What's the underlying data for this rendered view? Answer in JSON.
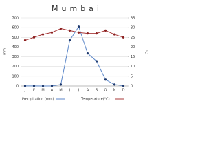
{
  "chart_data": {
    "type": "line",
    "title": "Mumbai",
    "categories": [
      "J",
      "F",
      "M",
      "A",
      "M",
      "J",
      "J",
      "A",
      "S",
      "O",
      "N",
      "D"
    ],
    "ylabel": "mm",
    "y2label": "°C",
    "ylim": [
      0,
      700
    ],
    "yticks": [
      0,
      100,
      200,
      300,
      400,
      500,
      600,
      700
    ],
    "y2lim": [
      0,
      35
    ],
    "y2ticks": [
      0,
      5,
      10,
      15,
      20,
      25,
      30,
      35
    ],
    "grid": true,
    "series": [
      {
        "name": "Precipitation (mm)",
        "color": "#5b86c8",
        "marker_color": "#1f3a6e",
        "axis": "y",
        "values": [
          1,
          1,
          0,
          1,
          15,
          470,
          610,
          335,
          255,
          65,
          15,
          3
        ]
      },
      {
        "name": "Temperature(°C)",
        "color": "#a83a3a",
        "marker_color": "#8b2020",
        "axis": "y2",
        "values": [
          23.5,
          25,
          26.5,
          27.5,
          29.5,
          28.5,
          27.5,
          27,
          27,
          28.5,
          26.5,
          25
        ]
      }
    ]
  }
}
